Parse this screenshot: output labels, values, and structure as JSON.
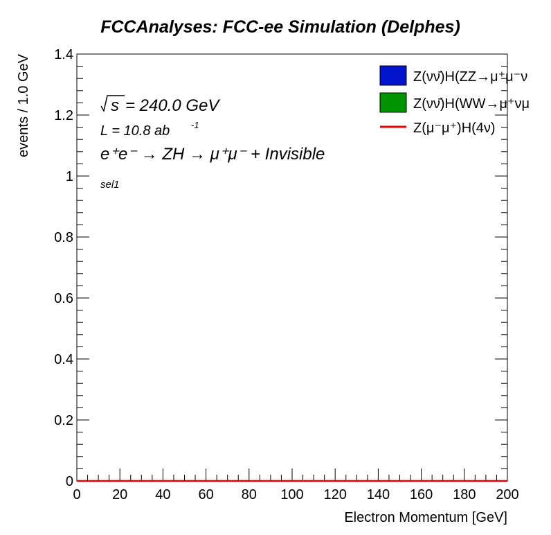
{
  "chart_data": {
    "type": "line",
    "title": "FCCAnalyses: FCC-ee Simulation (Delphes)",
    "xlabel": "Electron Momentum [GeV]",
    "ylabel": "events / 1.0 GeV",
    "xlim": [
      0,
      200
    ],
    "ylim": [
      0,
      1.4
    ],
    "x_ticks": [
      0,
      20,
      40,
      60,
      80,
      100,
      120,
      140,
      160,
      180,
      200
    ],
    "x_tick_labels": [
      "0",
      "20",
      "40",
      "60",
      "80",
      "100",
      "120",
      "140",
      "160",
      "180",
      "200"
    ],
    "y_ticks": [
      0,
      0.2,
      0.4,
      0.6,
      0.8,
      1,
      1.2,
      1.4
    ],
    "y_tick_labels": [
      "0",
      "0.2",
      "0.4",
      "0.6",
      "0.8",
      "1",
      "1.2",
      "1.4"
    ],
    "grid": false,
    "legend_position": "top-right",
    "annotations": {
      "sqrt_s": "s",
      "energy": "= 240.0 GeV",
      "lumi_prefix": "L = 10.8 ab",
      "lumi_exp": "-1",
      "process": "e⁺e⁻ → ZH → μ⁺μ⁻ + Invisible",
      "selection": "sel1"
    },
    "series": [
      {
        "name": "Z(νν̄)H(ZZ→μ⁺μ⁻ν",
        "kind": "filled",
        "color": "#0015cc",
        "x": [
          0,
          200
        ],
        "y": [
          0,
          0
        ]
      },
      {
        "name": "Z(νν̄)H(WW→μ⁺νμ",
        "kind": "filled",
        "color": "#009400",
        "x": [
          0,
          200
        ],
        "y": [
          0,
          0
        ]
      },
      {
        "name": "Z(μ⁻μ⁺)H(4ν)",
        "kind": "line",
        "color": "#e60000",
        "x": [
          0,
          200
        ],
        "y": [
          0,
          0
        ]
      }
    ]
  }
}
